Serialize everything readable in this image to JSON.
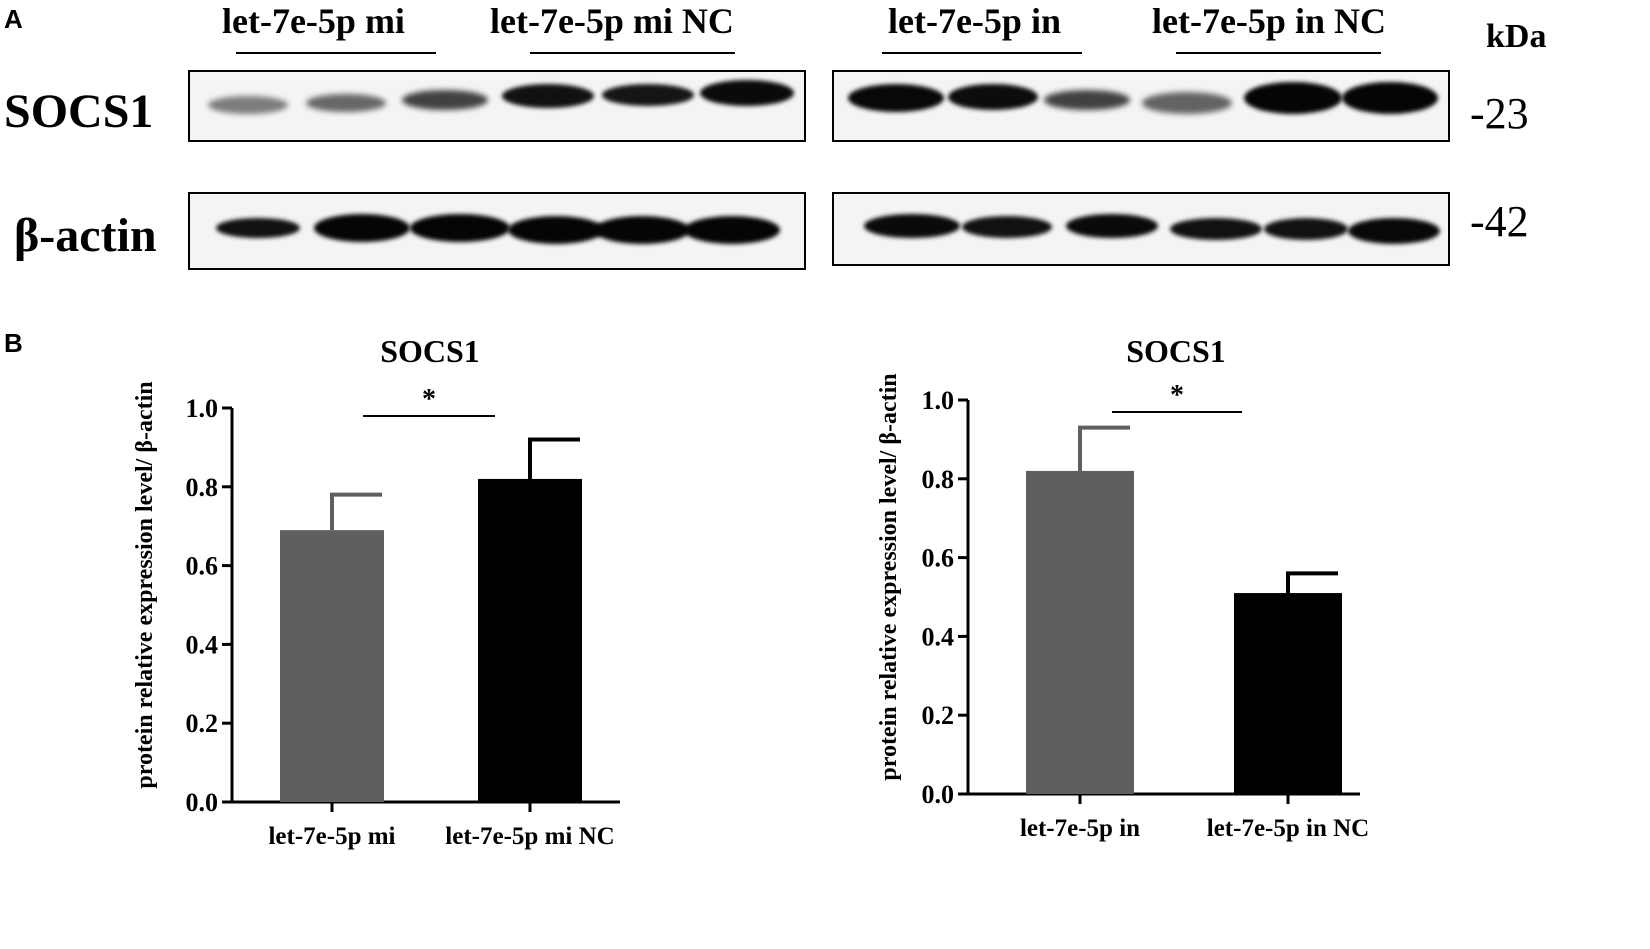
{
  "panel_a": {
    "letter": "A",
    "group_labels": [
      "let-7e-5p mi",
      "let-7e-5p mi NC",
      "let-7e-5p in",
      "let-7e-5p in NC"
    ],
    "unit": "kDa",
    "rows": [
      {
        "label": "SOCS1",
        "mw": "-23"
      },
      {
        "label": "β-actin",
        "mw": "-42"
      }
    ]
  },
  "panel_b": {
    "letter": "B"
  },
  "chart_data": [
    {
      "type": "bar",
      "title": "SOCS1",
      "ylabel": "protein relative  expression level/ β-actin",
      "xlabel": "",
      "categories": [
        "let-7e-5p mi",
        "let-7e-5p mi NC"
      ],
      "values": [
        0.69,
        0.82
      ],
      "errors": [
        0.09,
        0.1
      ],
      "colors": [
        "#5f5f5f",
        "#000000"
      ],
      "ylim": [
        0,
        1.0
      ],
      "yticks": [
        "0.0",
        "0.2",
        "0.4",
        "0.6",
        "0.8",
        "1.0"
      ],
      "significance": "*"
    },
    {
      "type": "bar",
      "title": "SOCS1",
      "ylabel": "protein relative  expression level/ β-actin",
      "xlabel": "",
      "categories": [
        "let-7e-5p in",
        "let-7e-5p in NC"
      ],
      "values": [
        0.82,
        0.51
      ],
      "errors": [
        0.11,
        0.05
      ],
      "colors": [
        "#5f5f5f",
        "#000000"
      ],
      "ylim": [
        0,
        1.0
      ],
      "yticks": [
        "0.0",
        "0.2",
        "0.4",
        "0.6",
        "0.8",
        "1.0"
      ],
      "significance": "*"
    }
  ]
}
